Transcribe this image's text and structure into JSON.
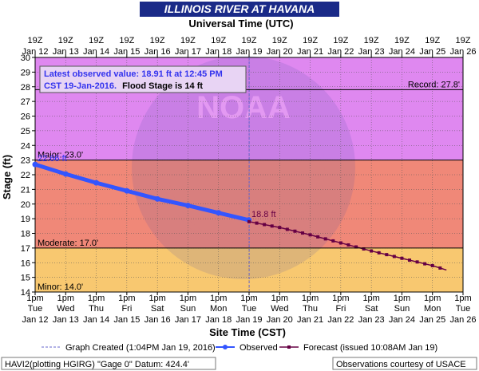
{
  "chart_data": {
    "type": "line",
    "title": "ILLINOIS RIVER AT HAVANA",
    "top_axis_label": "Universal Time (UTC)",
    "xlabel": "Site Time (CST)",
    "ylabel": "Stage (ft)",
    "ylim": [
      14,
      30
    ],
    "yticks": [
      "14",
      "15",
      "16",
      "17",
      "18",
      "19",
      "20",
      "21",
      "22",
      "23",
      "24",
      "25",
      "26",
      "27",
      "28",
      "29",
      "30"
    ],
    "xlim": [
      "2016-01-12 13:00",
      "2016-01-26 13:00"
    ],
    "top_ticks": [
      {
        "hour": "19Z",
        "date": "Jan 12"
      },
      {
        "hour": "19Z",
        "date": "Jan 13"
      },
      {
        "hour": "19Z",
        "date": "Jan 14"
      },
      {
        "hour": "19Z",
        "date": "Jan 15"
      },
      {
        "hour": "19Z",
        "date": "Jan 16"
      },
      {
        "hour": "19Z",
        "date": "Jan 17"
      },
      {
        "hour": "19Z",
        "date": "Jan 18"
      },
      {
        "hour": "19Z",
        "date": "Jan 19"
      },
      {
        "hour": "19Z",
        "date": "Jan 20"
      },
      {
        "hour": "19Z",
        "date": "Jan 21"
      },
      {
        "hour": "19Z",
        "date": "Jan 22"
      },
      {
        "hour": "19Z",
        "date": "Jan 23"
      },
      {
        "hour": "19Z",
        "date": "Jan 24"
      },
      {
        "hour": "19Z",
        "date": "Jan 25"
      },
      {
        "hour": "19Z",
        "date": "Jan 26"
      }
    ],
    "bottom_ticks": [
      {
        "time": "1pm",
        "day": "Tue",
        "date": "Jan 12"
      },
      {
        "time": "1pm",
        "day": "Wed",
        "date": "Jan 13"
      },
      {
        "time": "1pm",
        "day": "Thu",
        "date": "Jan 14"
      },
      {
        "time": "1pm",
        "day": "Fri",
        "date": "Jan 15"
      },
      {
        "time": "1pm",
        "day": "Sat",
        "date": "Jan 16"
      },
      {
        "time": "1pm",
        "day": "Sun",
        "date": "Jan 17"
      },
      {
        "time": "1pm",
        "day": "Mon",
        "date": "Jan 18"
      },
      {
        "time": "1pm",
        "day": "Tue",
        "date": "Jan 19"
      },
      {
        "time": "1pm",
        "day": "Wed",
        "date": "Jan 20"
      },
      {
        "time": "1pm",
        "day": "Thu",
        "date": "Jan 21"
      },
      {
        "time": "1pm",
        "day": "Fri",
        "date": "Jan 22"
      },
      {
        "time": "1pm",
        "day": "Sat",
        "date": "Jan 23"
      },
      {
        "time": "1pm",
        "day": "Sun",
        "date": "Jan 24"
      },
      {
        "time": "1pm",
        "day": "Mon",
        "date": "Jan 25"
      },
      {
        "time": "1pm",
        "day": "Tue",
        "date": "Jan 26"
      }
    ],
    "bands": [
      {
        "name": "Record",
        "label": "Record: 27.8'",
        "value": 27.8
      },
      {
        "name": "Major",
        "label": "Major: 23.0'",
        "value": 23.0,
        "color": "#df88f0"
      },
      {
        "name": "Moderate",
        "label": "Moderate: 17.0'",
        "value": 17.0,
        "color": "#f08878"
      },
      {
        "name": "Minor",
        "label": "Minor: 14.0'",
        "value": 14.0,
        "color": "#f8c870"
      }
    ],
    "series": [
      {
        "name": "Observed",
        "color": "#3355ff",
        "x": [
          "2016-01-12 13:00",
          "2016-01-13 13:00",
          "2016-01-14 13:00",
          "2016-01-15 13:00",
          "2016-01-16 13:00",
          "2016-01-17 13:00",
          "2016-01-18 13:00",
          "2016-01-19 12:45"
        ],
        "y": [
          22.7,
          22.05,
          21.45,
          20.9,
          20.35,
          19.9,
          19.4,
          18.91
        ]
      },
      {
        "name": "Forecast (issued 10:08AM Jan 19)",
        "color": "#660044",
        "x": [
          "2016-01-19 13:00",
          "2016-01-20 13:00",
          "2016-01-21 13:00",
          "2016-01-22 13:00",
          "2016-01-23 13:00",
          "2016-01-24 13:00",
          "2016-01-25 13:00",
          "2016-01-26 00:00"
        ],
        "y": [
          18.8,
          18.4,
          17.9,
          17.35,
          16.8,
          16.3,
          15.8,
          15.5
        ]
      }
    ],
    "annotations": {
      "observed_start_label": "22.66 ft",
      "forecast_start_label": "18.8 ft",
      "latest_line1": "Latest observed value: 18.91 ft at 12:45 PM",
      "latest_line2a": "CST 19-Jan-2016.",
      "latest_line2b": "Flood Stage is 14 ft",
      "watermark": "NOAA"
    },
    "graph_created": {
      "x": "2016-01-19 13:04"
    },
    "legend": {
      "created": "Graph Created (1:04PM Jan 19, 2016)",
      "observed": "Observed",
      "forecast": "Forecast (issued 10:08AM Jan 19)"
    },
    "footer": {
      "left": "HAVI2(plotting HGIRG) \"Gage 0\" Datum: 424.4'",
      "right": "Observations courtesy of USACE"
    },
    "colors": {
      "title_bg": "#1a2a88",
      "grid": "#444444",
      "observed": "#3355ff",
      "forecast": "#660044",
      "created_line": "#6666cc"
    }
  }
}
